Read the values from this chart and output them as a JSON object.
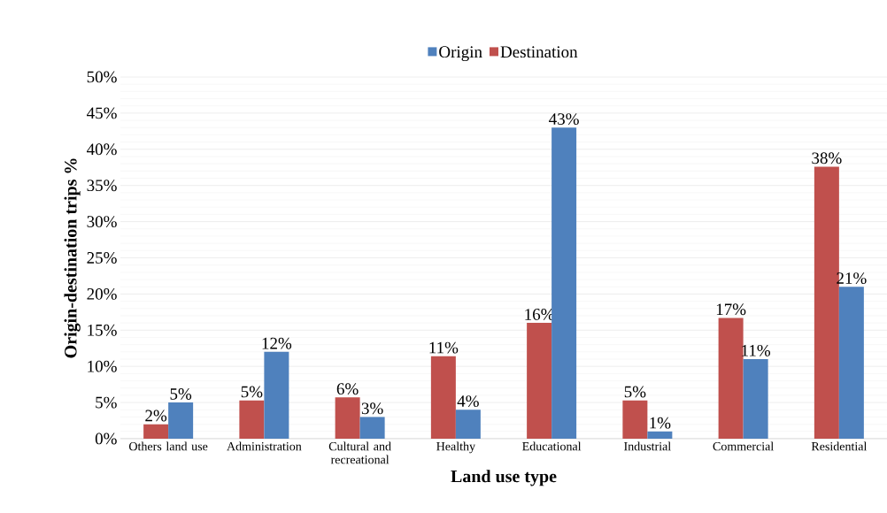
{
  "chart_data": {
    "type": "bar",
    "xlabel": "Land use type",
    "ylabel": "Origin-destination trips %",
    "categories": [
      "Others land use",
      "Administration",
      "Cultural and recreational",
      "Healthy",
      "Educational",
      "Industrial",
      "Commercial",
      "Residential"
    ],
    "series": [
      {
        "name": "Destination",
        "color": "#c0504d",
        "values": [
          2,
          5.3,
          5.7,
          11.4,
          16,
          5.3,
          16.7,
          37.6
        ],
        "value_labels": [
          "2%",
          "5%",
          "6%",
          "11%",
          "16%",
          "5%",
          "17%",
          "38%"
        ]
      },
      {
        "name": "Origin",
        "color": "#4f81bd",
        "values": [
          5,
          12,
          3,
          4,
          43,
          1,
          11,
          21
        ],
        "value_labels": [
          "5%",
          "12%",
          "3%",
          "4%",
          "43%",
          "1%",
          "11%",
          "21%"
        ]
      }
    ],
    "ylim": [
      0,
      50
    ],
    "yticks": [
      {
        "value": 0,
        "label": "0%"
      },
      {
        "value": 5,
        "label": "5%"
      },
      {
        "value": 10,
        "label": "10%"
      },
      {
        "value": 15,
        "label": "15%"
      },
      {
        "value": 20,
        "label": "20%"
      },
      {
        "value": 25,
        "label": "25%"
      },
      {
        "value": 30,
        "label": "30%"
      },
      {
        "value": 35,
        "label": "35%"
      },
      {
        "value": 40,
        "label": "40%"
      },
      {
        "value": 45,
        "label": "45%"
      },
      {
        "value": 50,
        "label": "50%"
      }
    ],
    "grid": "y",
    "legend": "top"
  }
}
